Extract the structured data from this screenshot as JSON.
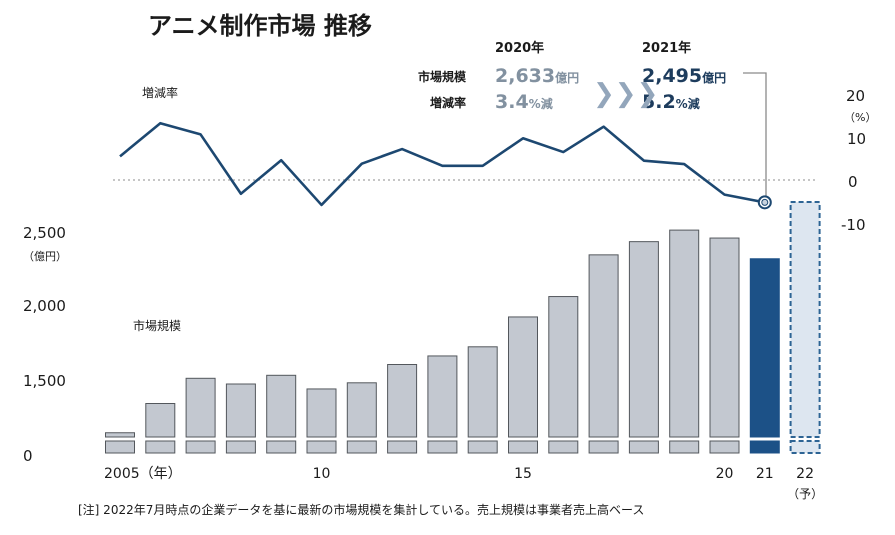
{
  "chart_data": {
    "type": "bar",
    "title": "アニメ制作市場 推移",
    "x": [
      "2005",
      "2006",
      "2007",
      "2008",
      "2009",
      "2010",
      "2011",
      "2012",
      "2013",
      "2014",
      "2015",
      "2016",
      "2017",
      "2018",
      "2019",
      "2020",
      "2021",
      "2022"
    ],
    "x_tick_labels": [
      {
        "index": 0,
        "text": "2005（年）"
      },
      {
        "index": 5,
        "text": "10"
      },
      {
        "index": 10,
        "text": "15"
      },
      {
        "index": 15,
        "text": "20"
      },
      {
        "index": 16,
        "text": "21"
      },
      {
        "index": 17,
        "text": "22"
      }
    ],
    "x_forecast_label": "（予）",
    "series": [
      {
        "name": "市場規模",
        "values": [
          1335,
          1530,
          1698,
          1660,
          1718,
          1627,
          1668,
          1790,
          1847,
          1908,
          2107,
          2243,
          2521,
          2609,
          2686,
          2633,
          2495,
          null
        ]
      },
      {
        "name": "増減率",
        "values": [
          5.5,
          13.2,
          10.6,
          -3.2,
          4.6,
          -5.8,
          3.8,
          7.2,
          3.3,
          3.3,
          9.7,
          6.5,
          12.4,
          4.5,
          3.7,
          -3.4,
          -5.2,
          null
        ]
      }
    ],
    "forecast_index": 17,
    "highlight_index": 16,
    "bar_axis": {
      "ticks": [
        "0",
        "1,500",
        "2,000",
        "2,500"
      ],
      "tick_values": [
        0,
        1500,
        2000,
        2500
      ],
      "unit": "（億円）",
      "range": [
        1200,
        2900
      ],
      "axis_break": true
    },
    "rate_axis": {
      "ticks": [
        "20",
        "10",
        "0",
        "-10"
      ],
      "tick_values": [
        20,
        10,
        0,
        -10
      ],
      "unit": "（%）",
      "range": [
        -10,
        20
      ]
    },
    "series_labels": {
      "bar": "市場規模",
      "line": "増減率"
    },
    "callout": {
      "row_labels": [
        "市場規模",
        "増減率"
      ],
      "arrow": "❯❯❯",
      "prev": {
        "year": "2020年",
        "size_value": "2,633",
        "size_unit": "億円",
        "rate_value": "3.4",
        "rate_unit": "%減"
      },
      "curr": {
        "year": "2021年",
        "size_value": "2,495",
        "size_unit": "億円",
        "rate_value": "5.2",
        "rate_unit": "%減"
      }
    },
    "footnote": "[注] 2022年7月時点の企業データを基に最新の市場規模を集計している。売上規模は事業者売上高ベース",
    "colors": {
      "bar": "#c3c8d0",
      "bar_stroke": "#53575c",
      "highlight": "#1c5187",
      "forecast_fill": "#dde6f0",
      "forecast_stroke": "#2d6494",
      "line": "#1d4871",
      "zero_line": "#a5a5a5",
      "callout_prev": "#8291a0",
      "callout_curr": "#1d3c5d",
      "arrow": "#93a6bb"
    }
  }
}
